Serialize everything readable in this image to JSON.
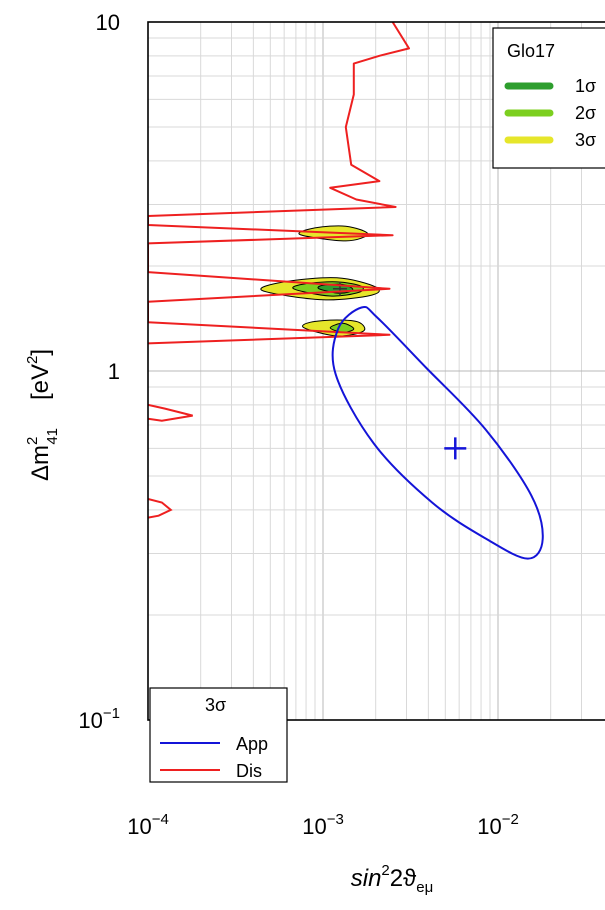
{
  "chart_data": {
    "type": "contour",
    "x_scale": "log",
    "y_scale": "log",
    "xlim": [
      0.0001,
      0.03
    ],
    "ylim": [
      0.1,
      10
    ],
    "grid": true,
    "x_ticks": [
      {
        "base": "10",
        "exp": "−4"
      },
      {
        "base": "10",
        "exp": "−3"
      },
      {
        "base": "10",
        "exp": "−2"
      }
    ],
    "y_ticks": [
      {
        "base": "10",
        "exp": "−1"
      },
      {
        "text": "1"
      },
      {
        "text": "10"
      }
    ],
    "xlabel": {
      "pre": "sin",
      "sup": "2",
      "mid": "2ϑ",
      "sub": "eμ"
    },
    "ylabel": {
      "pre": "Δm",
      "sup": "2",
      "sub": "41",
      "unit": "[eV",
      "unit_sup": "2",
      "unit_post": "]"
    },
    "colors": {
      "sigma1": "#2e9e2e",
      "sigma2": "#7ccf1f",
      "sigma3": "#e6e62a",
      "app": "#1414d8",
      "dis": "#ee2020"
    },
    "legend_global": {
      "title": "Glo17",
      "placement": "top-right",
      "items": [
        "1σ",
        "2σ",
        "3σ"
      ]
    },
    "legend_cl": {
      "title": "3σ",
      "placement": "bottom-left",
      "items": [
        "App",
        "Dis"
      ]
    },
    "app_contour": {
      "label": "App",
      "center": [
        0.0057,
        0.6
      ],
      "best_fit": [
        0.0057,
        0.6
      ],
      "points": [
        [
          0.00166,
          1.52
        ],
        [
          0.00122,
          1.32
        ],
        [
          0.00118,
          0.98
        ],
        [
          0.00195,
          0.62
        ],
        [
          0.0042,
          0.42
        ],
        [
          0.0086,
          0.33
        ],
        [
          0.0148,
          0.29
        ],
        [
          0.018,
          0.33
        ],
        [
          0.0155,
          0.44
        ],
        [
          0.0085,
          0.68
        ],
        [
          0.0039,
          1.02
        ],
        [
          0.00205,
          1.42
        ]
      ]
    },
    "dis_contour": {
      "label": "Dis",
      "points": [
        [
          0.0025,
          10
        ],
        [
          0.0031,
          8.4
        ],
        [
          0.0021,
          8.0
        ],
        [
          0.0015,
          7.6
        ],
        [
          0.0015,
          6.2
        ],
        [
          0.00135,
          5.0
        ],
        [
          0.00145,
          3.9
        ],
        [
          0.0021,
          3.5
        ],
        [
          0.0011,
          3.35
        ],
        [
          0.00155,
          3.1
        ],
        [
          0.0026,
          2.95
        ],
        [
          0.0001,
          2.78
        ],
        [
          0.0001,
          2.62
        ],
        [
          0.0025,
          2.45
        ],
        [
          0.0001,
          2.32
        ],
        [
          0.0001,
          1.92
        ],
        [
          0.0024,
          1.72
        ],
        [
          0.0001,
          1.58
        ],
        [
          0.0001,
          1.38
        ],
        [
          0.0024,
          1.27
        ],
        [
          0.0001,
          1.2
        ]
      ]
    },
    "global_regions": [
      {
        "level": "3σ",
        "points": [
          [
            0.00074,
            2.46
          ],
          [
            0.00135,
            2.36
          ],
          [
            0.0018,
            2.47
          ],
          [
            0.00135,
            2.6
          ],
          [
            0.0009,
            2.57
          ]
        ]
      },
      {
        "level": "3σ",
        "points": [
          [
            0.00045,
            1.7
          ],
          [
            0.001,
            1.6
          ],
          [
            0.0019,
            1.65
          ],
          [
            0.002,
            1.74
          ],
          [
            0.0012,
            1.85
          ],
          [
            0.0006,
            1.8
          ]
        ]
      },
      {
        "level": "2σ",
        "points": [
          [
            0.00068,
            1.72
          ],
          [
            0.0011,
            1.64
          ],
          [
            0.0016,
            1.68
          ],
          [
            0.00165,
            1.75
          ],
          [
            0.0012,
            1.8
          ],
          [
            0.0008,
            1.78
          ]
        ]
      },
      {
        "level": "1σ",
        "points": [
          [
            0.00095,
            1.72
          ],
          [
            0.00125,
            1.67
          ],
          [
            0.00148,
            1.71
          ],
          [
            0.0013,
            1.77
          ],
          [
            0.001,
            1.76
          ]
        ]
      },
      {
        "level": "3σ",
        "points": [
          [
            0.00078,
            1.33
          ],
          [
            0.0012,
            1.26
          ],
          [
            0.0017,
            1.3
          ],
          [
            0.0016,
            1.38
          ],
          [
            0.0012,
            1.4
          ],
          [
            0.00085,
            1.38
          ]
        ]
      },
      {
        "level": "2σ",
        "points": [
          [
            0.0011,
            1.33
          ],
          [
            0.0013,
            1.29
          ],
          [
            0.0015,
            1.32
          ],
          [
            0.0013,
            1.37
          ]
        ]
      }
    ],
    "global_best_fit": [
      0.00125,
      1.72
    ]
  }
}
